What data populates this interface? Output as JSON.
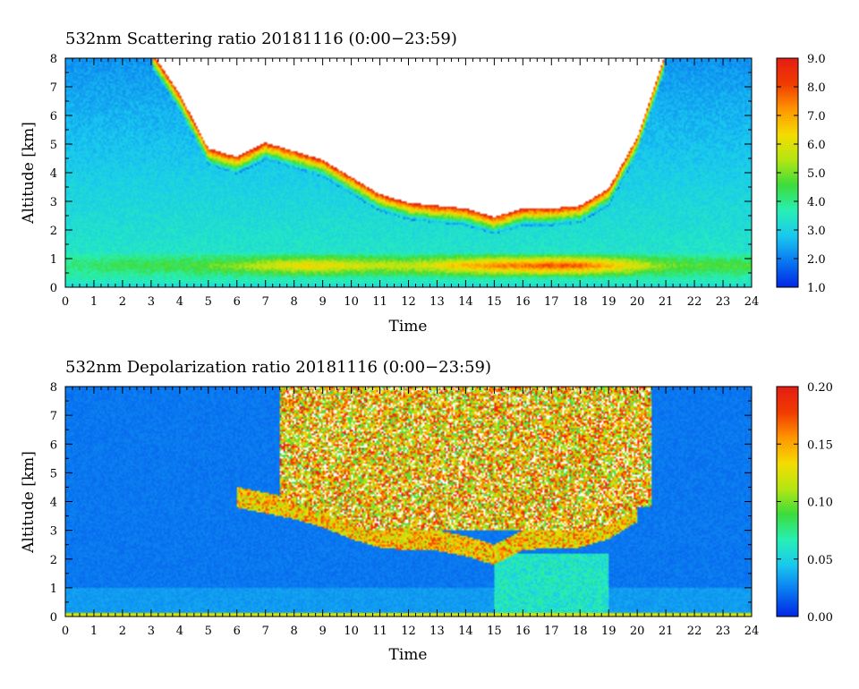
{
  "chart_data": [
    {
      "type": "heatmap",
      "title": "532nm Scattering ratio  20181116 (0:00−23:59)",
      "xlabel": "Time",
      "ylabel": "Altitude [km]",
      "xlim": [
        0,
        24
      ],
      "ylim": [
        0,
        8
      ],
      "x_ticks": [
        "0",
        "1",
        "2",
        "3",
        "4",
        "5",
        "6",
        "7",
        "8",
        "9",
        "10",
        "11",
        "12",
        "13",
        "14",
        "15",
        "16",
        "17",
        "18",
        "19",
        "20",
        "21",
        "22",
        "23",
        "24"
      ],
      "y_ticks": [
        "0",
        "1",
        "2",
        "3",
        "4",
        "5",
        "6",
        "7",
        "8"
      ],
      "colorbar": {
        "min": 1.0,
        "max": 9.0,
        "ticks": [
          "1.0",
          "2.0",
          "3.0",
          "4.0",
          "5.0",
          "6.0",
          "7.0",
          "8.0",
          "9.0"
        ]
      },
      "cloud_base_km": [
        [
          0,
          8
        ],
        [
          1,
          8
        ],
        [
          2,
          8
        ],
        [
          3,
          8
        ],
        [
          4,
          6.5
        ],
        [
          5,
          4.6
        ],
        [
          6,
          4.3
        ],
        [
          7,
          4.8
        ],
        [
          8,
          4.5
        ],
        [
          9,
          4.2
        ],
        [
          10,
          3.6
        ],
        [
          11,
          3.0
        ],
        [
          12,
          2.7
        ],
        [
          13,
          2.6
        ],
        [
          14,
          2.5
        ],
        [
          15,
          2.2
        ],
        [
          16,
          2.5
        ],
        [
          17,
          2.5
        ],
        [
          18,
          2.6
        ],
        [
          19,
          3.2
        ],
        [
          20,
          5.0
        ],
        [
          21,
          8
        ],
        [
          22,
          8
        ],
        [
          23,
          8
        ],
        [
          24,
          8
        ]
      ],
      "low_aerosol_layer_km": [
        0.3,
        1.2
      ],
      "low_layer_ratio": [
        [
          0,
          4.0
        ],
        [
          2,
          4.5
        ],
        [
          4,
          4.6
        ],
        [
          6,
          5.2
        ],
        [
          7,
          5.8
        ],
        [
          8,
          6.3
        ],
        [
          9,
          6.5
        ],
        [
          10,
          6.0
        ],
        [
          11,
          5.8
        ],
        [
          12,
          5.8
        ],
        [
          13,
          6.2
        ],
        [
          14,
          7.0
        ],
        [
          15,
          7.5
        ],
        [
          16,
          7.8
        ],
        [
          17,
          8.2
        ],
        [
          18,
          8.0
        ],
        [
          19,
          7.0
        ],
        [
          20,
          6.0
        ],
        [
          21,
          5.0
        ],
        [
          22,
          4.8
        ],
        [
          24,
          4.6
        ]
      ]
    },
    {
      "type": "heatmap",
      "title": "532nm Depolarization ratio  20181116 (0:00−23:59)",
      "xlabel": "Time",
      "ylabel": "Altitude [km]",
      "xlim": [
        0,
        24
      ],
      "ylim": [
        0,
        8
      ],
      "x_ticks": [
        "0",
        "1",
        "2",
        "3",
        "4",
        "5",
        "6",
        "7",
        "8",
        "9",
        "10",
        "11",
        "12",
        "13",
        "14",
        "15",
        "16",
        "17",
        "18",
        "19",
        "20",
        "21",
        "22",
        "23",
        "24"
      ],
      "y_ticks": [
        "0",
        "1",
        "2",
        "3",
        "4",
        "5",
        "6",
        "7",
        "8"
      ],
      "colorbar": {
        "min": 0.0,
        "max": 0.2,
        "ticks": [
          "0.00",
          "0.05",
          "0.10",
          "0.15",
          "0.20"
        ]
      },
      "cloud_base_km": [
        [
          6,
          4.0
        ],
        [
          7,
          3.8
        ],
        [
          8,
          3.6
        ],
        [
          9,
          3.3
        ],
        [
          10,
          2.9
        ],
        [
          11,
          2.6
        ],
        [
          12,
          2.5
        ],
        [
          13,
          2.5
        ],
        [
          14,
          2.3
        ],
        [
          15,
          2.0
        ],
        [
          16,
          2.5
        ],
        [
          17,
          2.6
        ],
        [
          18,
          2.6
        ],
        [
          19,
          2.9
        ],
        [
          20,
          3.5
        ]
      ],
      "noisy_region": {
        "x": [
          7.5,
          20.5
        ],
        "y_km": [
          3.0,
          8.0
        ]
      }
    }
  ],
  "colors": {
    "colormap": [
      "#0028e6",
      "#0a78f0",
      "#19c8f0",
      "#28f0b4",
      "#3cdc3c",
      "#b4e614",
      "#f5dc00",
      "#ff9600",
      "#f03c00",
      "#e61e14"
    ]
  }
}
